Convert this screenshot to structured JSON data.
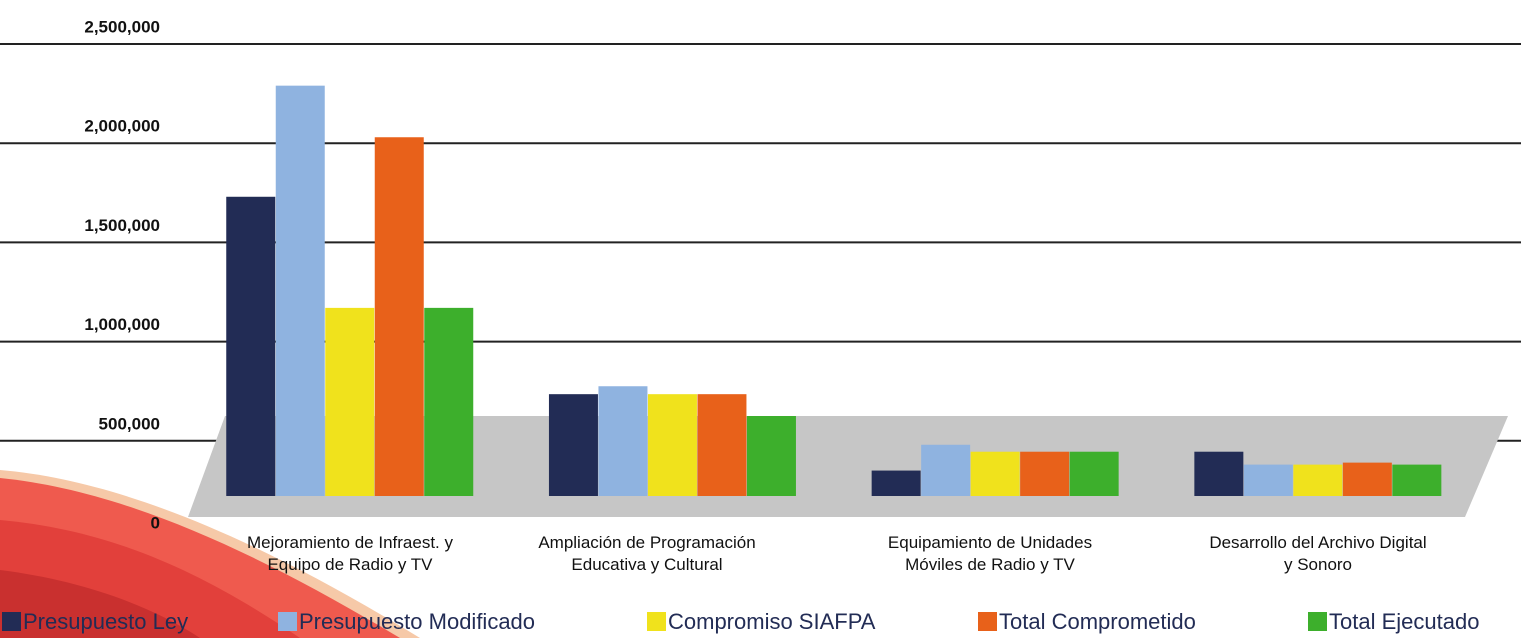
{
  "chart_data": {
    "type": "bar",
    "categories": [
      "Mejoramiento de Infraest. y\nEquipo de Radio y TV",
      "Ampliación de Programación\nEducativa y Cultural",
      "Equipamiento de Unidades\nMóviles de Radio y TV",
      "Desarrollo del Archivo Digital\ny Sonoro"
    ],
    "series": [
      {
        "name": "Presupuesto Ley",
        "color": "#222c55",
        "values": [
          1730000,
          735000,
          350000,
          445000
        ]
      },
      {
        "name": "Presupuesto Modificado",
        "color": "#8fb3e0",
        "values": [
          2290000,
          775000,
          480000,
          380000
        ]
      },
      {
        "name": "Compromiso SIAFPA",
        "color": "#f0e21c",
        "values": [
          1170000,
          735000,
          445000,
          380000
        ]
      },
      {
        "name": "Total Comprometido",
        "color": "#e8611a",
        "values": [
          2030000,
          735000,
          445000,
          390000
        ]
      },
      {
        "name": "Total Ejecutado",
        "color": "#3daf2c",
        "values": [
          1170000,
          625000,
          445000,
          380000
        ]
      }
    ],
    "ylim": [
      0,
      2500000
    ],
    "yticks": [
      0,
      {
        "value": 500000,
        "label": "500,000"
      },
      {
        "value": 1000000,
        "label": "1,000,000"
      },
      {
        "value": 1500000,
        "label": "1,500,000"
      },
      {
        "value": 2000000,
        "label": "2,000,000"
      },
      {
        "value": 2500000,
        "label": "2,500,000"
      }
    ],
    "grid": true
  }
}
